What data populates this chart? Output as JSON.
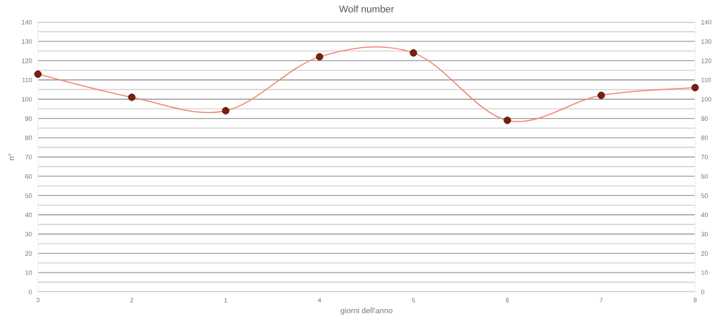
{
  "chart_data": {
    "type": "line",
    "title": "Wolf number",
    "xlabel": "giorni dell'anno",
    "ylabel": "n°",
    "categories": [
      "3",
      "2",
      "1",
      "4",
      "5",
      "6",
      "7",
      "8"
    ],
    "series": [
      {
        "color": "#f4826e",
        "colors": [
          "#7a1f10",
          "#7a1f10",
          "#7a1f10",
          "#7a1f10",
          "#7a1f10",
          "#7a1f10",
          "#7a1f10",
          "#7a1f10"
        ],
        "values": [
          113,
          101,
          94,
          122,
          124,
          89,
          102,
          106
        ]
      }
    ],
    "ylim": [
      0,
      140
    ],
    "yticks": [
      0,
      {
        "value": 5,
        "label": null
      },
      10,
      {
        "value": 15,
        "label": null
      },
      20,
      {
        "value": 25,
        "label": null
      },
      30,
      {
        "value": 35,
        "label": null
      },
      40,
      {
        "value": 45,
        "label": null
      },
      50,
      {
        "value": 55,
        "label": null
      },
      60,
      {
        "value": 65,
        "label": null
      },
      70,
      {
        "value": 75,
        "label": null
      },
      80,
      {
        "value": 85,
        "label": null
      },
      90,
      {
        "value": 95,
        "label": null
      },
      100,
      {
        "value": 105,
        "label": null
      },
      110,
      {
        "value": 115,
        "label": null
      },
      120,
      {
        "value": 125,
        "label": null
      },
      130,
      {
        "value": 135,
        "label": null
      },
      140
    ],
    "y2lim": [
      0,
      140
    ],
    "y2ticks": [
      0,
      10,
      20,
      30,
      40,
      50,
      60,
      70,
      80,
      90,
      100,
      110,
      120,
      130,
      140
    ],
    "grid": "y",
    "marker": "circle",
    "line_style": "solid"
  }
}
